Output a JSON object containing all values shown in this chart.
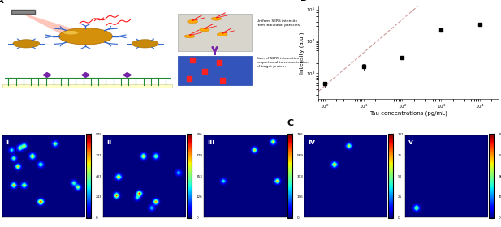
{
  "title_B": "B",
  "title_C": "C",
  "title_A": "A",
  "xlabel_B": "Tau concentrations (pg/mL)",
  "ylabel_B": "Intensity (a.u.)",
  "x_data": [
    1,
    10,
    100,
    1000,
    10000
  ],
  "y_data": [
    450,
    1600,
    3000,
    22000,
    33000
  ],
  "y_err_upper": [
    80,
    250,
    0,
    2500,
    0
  ],
  "y_err_lower": [
    100,
    400,
    0,
    2500,
    0
  ],
  "xlim_B": [
    0.7,
    30000
  ],
  "ylim_B": [
    150,
    120000
  ],
  "fit_slope": 1.05,
  "fit_intercept": 2.58,
  "bg_color": "#ffffff",
  "map_titles": [
    "i",
    "ii",
    "iii",
    "iv",
    "v"
  ],
  "panel_label_fontsize": 8,
  "colormap": "jet",
  "map_vmax": [
    975,
    506,
    786,
    101,
    196
  ],
  "map_nspots": [
    14,
    9,
    4,
    2,
    1
  ],
  "map_seeds": [
    42,
    123,
    7,
    55,
    99
  ],
  "map_size": 40
}
